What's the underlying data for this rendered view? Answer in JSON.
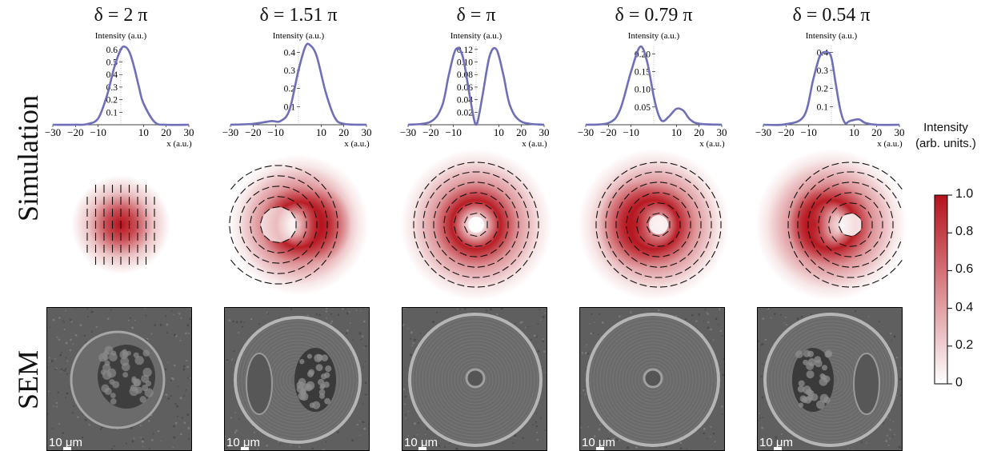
{
  "row_labels": {
    "simulation": "Simulation",
    "sem": "SEM"
  },
  "colorbar": {
    "title_line1": "Intensity",
    "title_line2": "(arb. units.)",
    "ticks": [
      "1.0",
      "0.8",
      "0.6",
      "0.4",
      "0.2",
      "0"
    ],
    "color_max": "#b5121b",
    "color_min": "#ffffff"
  },
  "plot_axes": {
    "ylabel": "Intensity (a.u.)",
    "xlabel": "x (a.u.)",
    "curve_color": "#6f6fb8"
  },
  "scale_bar_label": "10 μm",
  "panels": [
    {
      "delta": "δ = 2 π",
      "x_ticks": [
        "−30",
        "−20",
        "−10",
        "10",
        "20",
        "30"
      ],
      "y_ticks": [
        "0.6",
        "0.5",
        "0.4",
        "0.3",
        "0.2",
        "0.1"
      ]
    },
    {
      "delta": "δ = 1.51 π",
      "x_ticks": [
        "−30",
        "−20",
        "−10",
        "10",
        "20",
        "30"
      ],
      "y_ticks": [
        "0.4",
        "0.3",
        "0.2",
        "0.1"
      ]
    },
    {
      "delta": "δ = π",
      "x_ticks": [
        "−30",
        "−20",
        "−10",
        "10",
        "20",
        "30"
      ],
      "y_ticks": [
        "0.12",
        "0.10",
        "0.08",
        "0.06",
        "0.04",
        "0.02"
      ]
    },
    {
      "delta": "δ = 0.79 π",
      "x_ticks": [
        "−30",
        "−20",
        "−10",
        "10",
        "20",
        "30"
      ],
      "y_ticks": [
        "0.20",
        "0.15",
        "0.10",
        "0.05"
      ]
    },
    {
      "delta": "δ = 0.54 π",
      "x_ticks": [
        "−30",
        "−20",
        "−10",
        "10",
        "20",
        "30"
      ],
      "y_ticks": [
        "0.4",
        "0.3",
        "0.2",
        "0.1"
      ]
    }
  ],
  "chart_data": [
    {
      "type": "line",
      "title": "δ = 2 π",
      "xlabel": "x (a.u.)",
      "ylabel": "Intensity (a.u.)",
      "xlim": [
        -30,
        30
      ],
      "ylim": [
        0,
        0.65
      ],
      "x": [
        -30,
        -20,
        -15,
        -10,
        -6,
        -3,
        0,
        2,
        4,
        6,
        8,
        10,
        15,
        20,
        30
      ],
      "y": [
        0,
        0,
        0.005,
        0.05,
        0.24,
        0.45,
        0.6,
        0.62,
        0.57,
        0.45,
        0.3,
        0.17,
        0.02,
        0,
        0
      ]
    },
    {
      "type": "line",
      "title": "δ = 1.51 π",
      "xlabel": "x (a.u.)",
      "ylabel": "Intensity (a.u.)",
      "xlim": [
        -30,
        30
      ],
      "ylim": [
        0,
        0.45
      ],
      "x": [
        -30,
        -20,
        -12,
        -8,
        -4,
        0,
        3,
        5,
        8,
        12,
        16,
        20,
        30
      ],
      "y": [
        0,
        0.005,
        0.02,
        0.02,
        0.08,
        0.3,
        0.43,
        0.44,
        0.38,
        0.18,
        0.04,
        0.005,
        0
      ]
    },
    {
      "type": "line",
      "title": "δ = π",
      "xlabel": "x (a.u.)",
      "ylabel": "Intensity (a.u.)",
      "xlim": [
        -30,
        30
      ],
      "ylim": [
        0,
        0.13
      ],
      "x": [
        -30,
        -20,
        -15,
        -12,
        -9,
        -6,
        -3,
        -1,
        0,
        1,
        3,
        6,
        9,
        12,
        15,
        20,
        30
      ],
      "y": [
        0,
        0.005,
        0.03,
        0.08,
        0.12,
        0.11,
        0.05,
        0.01,
        0,
        0.01,
        0.05,
        0.11,
        0.12,
        0.08,
        0.03,
        0.005,
        0
      ]
    },
    {
      "type": "line",
      "title": "δ = 0.79 π",
      "xlabel": "x (a.u.)",
      "ylabel": "Intensity (a.u.)",
      "xlim": [
        -30,
        30
      ],
      "ylim": [
        0,
        0.23
      ],
      "x": [
        -30,
        -20,
        -15,
        -10,
        -6,
        -3,
        0,
        2,
        4,
        7,
        10,
        13,
        16,
        20,
        30
      ],
      "y": [
        0,
        0.005,
        0.04,
        0.15,
        0.22,
        0.18,
        0.08,
        0.03,
        0.01,
        0.025,
        0.045,
        0.04,
        0.015,
        0.003,
        0
      ]
    },
    {
      "type": "line",
      "title": "δ = 0.54 π",
      "xlabel": "x (a.u.)",
      "ylabel": "Intensity (a.u.)",
      "xlim": [
        -30,
        30
      ],
      "ylim": [
        0,
        0.45
      ],
      "x": [
        -30,
        -20,
        -12,
        -8,
        -5,
        -2,
        0,
        2,
        4,
        6,
        8,
        12,
        15,
        20,
        30
      ],
      "y": [
        0,
        0.003,
        0.05,
        0.25,
        0.38,
        0.4,
        0.37,
        0.22,
        0.08,
        0.01,
        0.02,
        0.03,
        0.01,
        0,
        0
      ]
    }
  ]
}
